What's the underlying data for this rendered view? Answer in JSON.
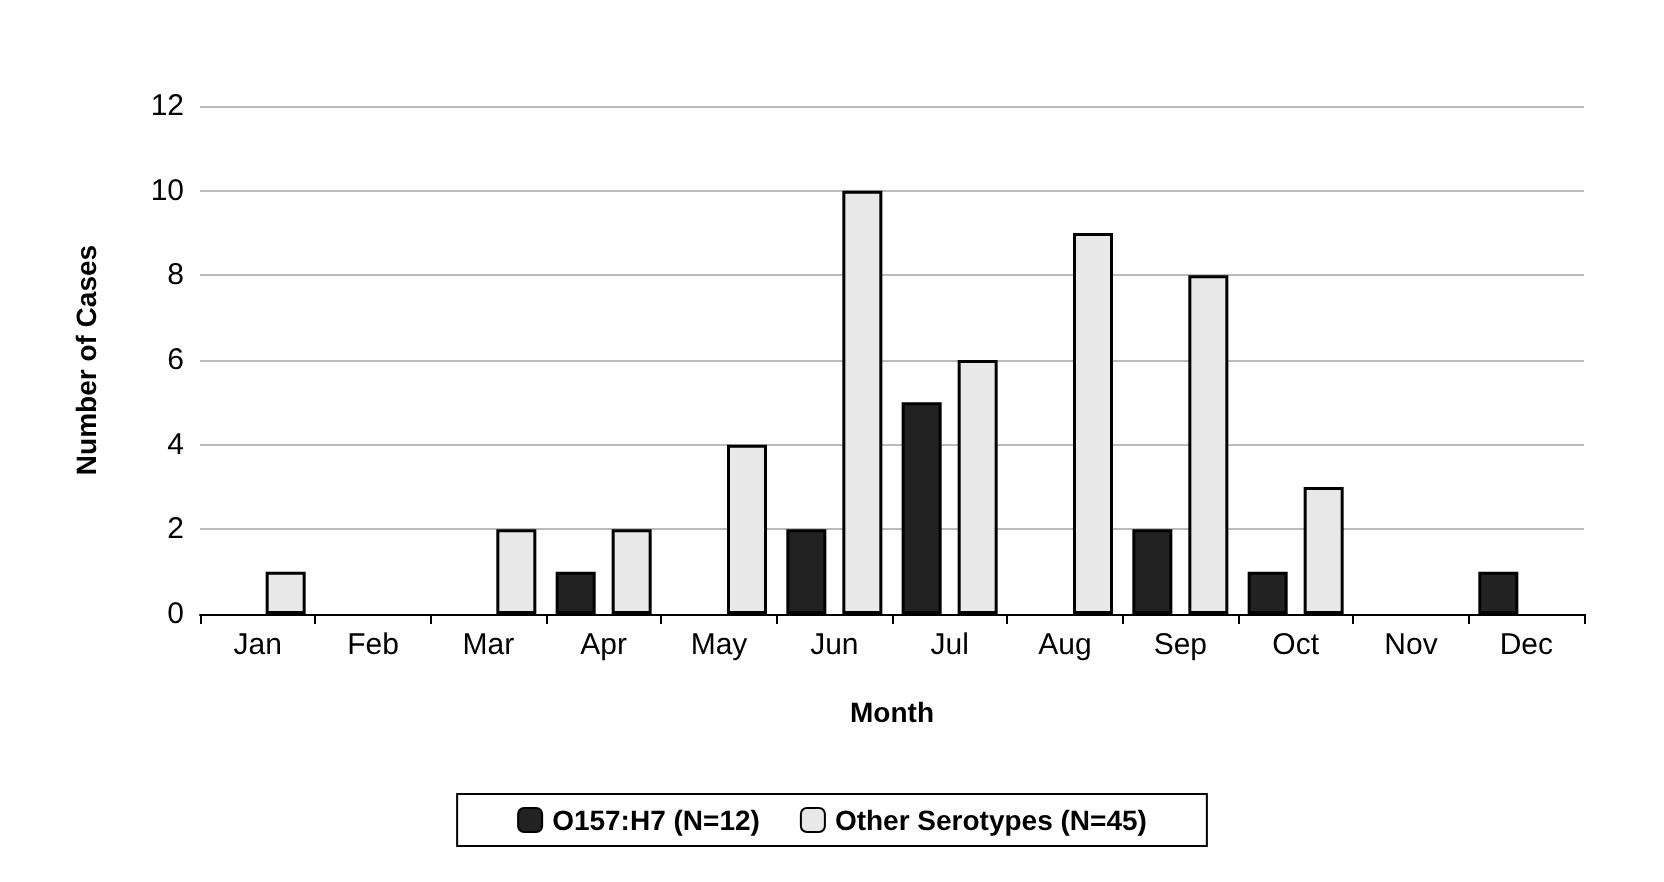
{
  "chart_data": {
    "type": "bar",
    "xlabel": "Month",
    "ylabel": "Number of Cases",
    "categories": [
      "Jan",
      "Feb",
      "Mar",
      "Apr",
      "May",
      "Jun",
      "Jul",
      "Aug",
      "Sep",
      "Oct",
      "Nov",
      "Dec"
    ],
    "series": [
      {
        "name": "O157:H7 (N=12)",
        "color": "#222222",
        "values": [
          0,
          0,
          0,
          1,
          0,
          2,
          5,
          0,
          2,
          1,
          0,
          1
        ]
      },
      {
        "name": "Other Serotypes (N=45)",
        "color": "#e8e8e8",
        "values": [
          1,
          0,
          2,
          2,
          4,
          10,
          6,
          9,
          8,
          3,
          0,
          0
        ]
      }
    ],
    "ylim": [
      0,
      12
    ],
    "yticks": [
      0,
      2,
      4,
      6,
      8,
      10,
      12
    ],
    "grid": "y",
    "legend": "bottom"
  }
}
